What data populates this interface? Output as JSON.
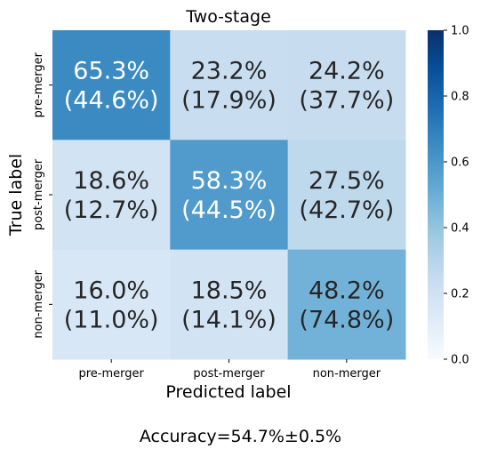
{
  "chart_data": {
    "type": "heatmap",
    "title": "Two-stage",
    "xlabel": "Predicted label",
    "ylabel": "True label",
    "x_categories": [
      "pre-merger",
      "post-merger",
      "non-merger"
    ],
    "y_categories": [
      "pre-merger",
      "post-merger",
      "non-merger"
    ],
    "values": [
      [
        65.3,
        23.2,
        24.2
      ],
      [
        18.6,
        58.3,
        27.5
      ],
      [
        16.0,
        18.5,
        48.2
      ]
    ],
    "secondary_values": [
      [
        44.6,
        17.9,
        37.7
      ],
      [
        12.7,
        44.5,
        42.7
      ],
      [
        11.0,
        14.1,
        74.8
      ]
    ],
    "cell_labels": [
      [
        "65.3%",
        "(44.6%)",
        "23.2%",
        "(17.9%)",
        "24.2%",
        "(37.7%)"
      ],
      [
        "18.6%",
        "(12.7%)",
        "58.3%",
        "(44.5%)",
        "27.5%",
        "(42.7%)"
      ],
      [
        "16.0%",
        "(11.0%)",
        "18.5%",
        "(14.1%)",
        "48.2%",
        "(74.8%)"
      ]
    ],
    "colorbar": {
      "min": 0.0,
      "max": 1.0,
      "ticks": [
        "0.0",
        "0.2",
        "0.4",
        "0.6",
        "0.8",
        "1.0"
      ],
      "colormap": "Blues"
    },
    "grid": false,
    "colors": {
      "dark_text": "#262626",
      "light_text": "#ffffff"
    }
  },
  "caption": "Accuracy=54.7%±0.5%"
}
